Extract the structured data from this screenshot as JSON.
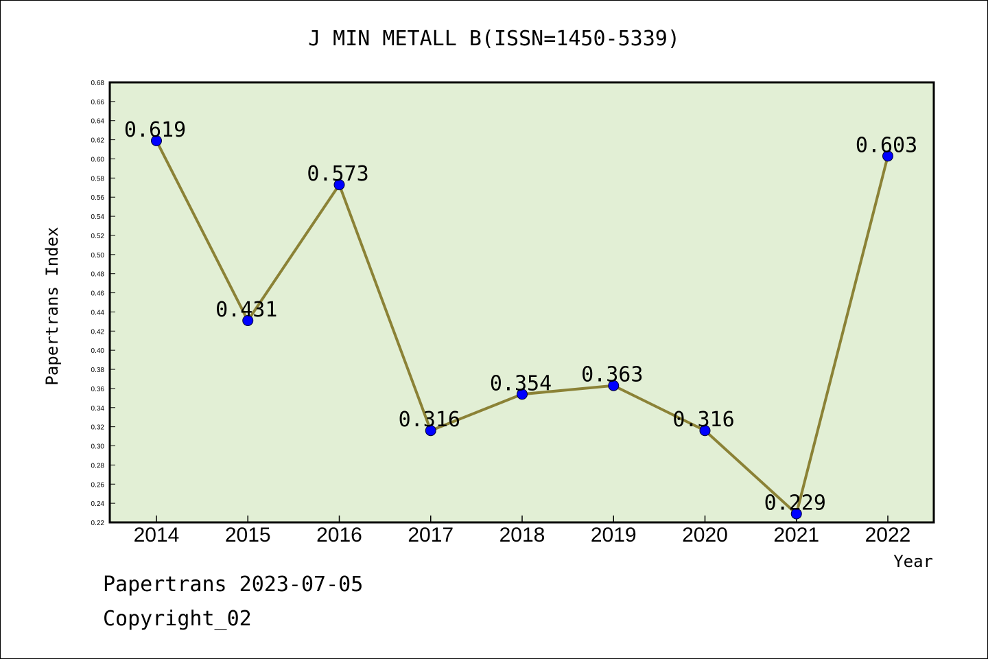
{
  "chart_data": {
    "type": "line",
    "title": "J MIN METALL B(ISSN=1450-5339)",
    "xlabel": "Year",
    "ylabel": "Papertrans Index",
    "categories": [
      "2014",
      "2015",
      "2016",
      "2017",
      "2018",
      "2019",
      "2020",
      "2021",
      "2022"
    ],
    "values": [
      0.619,
      0.431,
      0.573,
      0.316,
      0.354,
      0.363,
      0.316,
      0.229,
      0.603
    ],
    "data_labels": [
      "0.619",
      "0.431",
      "0.573",
      "0.316",
      "0.354",
      "0.363",
      "0.316",
      "0.229",
      "0.603"
    ],
    "ylim": [
      0.22,
      0.68
    ],
    "yticks": [
      "0.22",
      "0.24",
      "0.26",
      "0.28",
      "0.30",
      "0.32",
      "0.34",
      "0.36",
      "0.38",
      "0.40",
      "0.42",
      "0.44",
      "0.46",
      "0.48",
      "0.50",
      "0.52",
      "0.54",
      "0.56",
      "0.58",
      "0.60",
      "0.62",
      "0.64",
      "0.66",
      "0.68"
    ],
    "grid": false,
    "legend": "none",
    "colors": {
      "plot_background": "#e2efd5",
      "line": "#8b8236",
      "marker": "#0000ff"
    }
  },
  "footer": {
    "date_line": "Papertrans 2023-07-05",
    "copyright": "Copyright_02"
  }
}
